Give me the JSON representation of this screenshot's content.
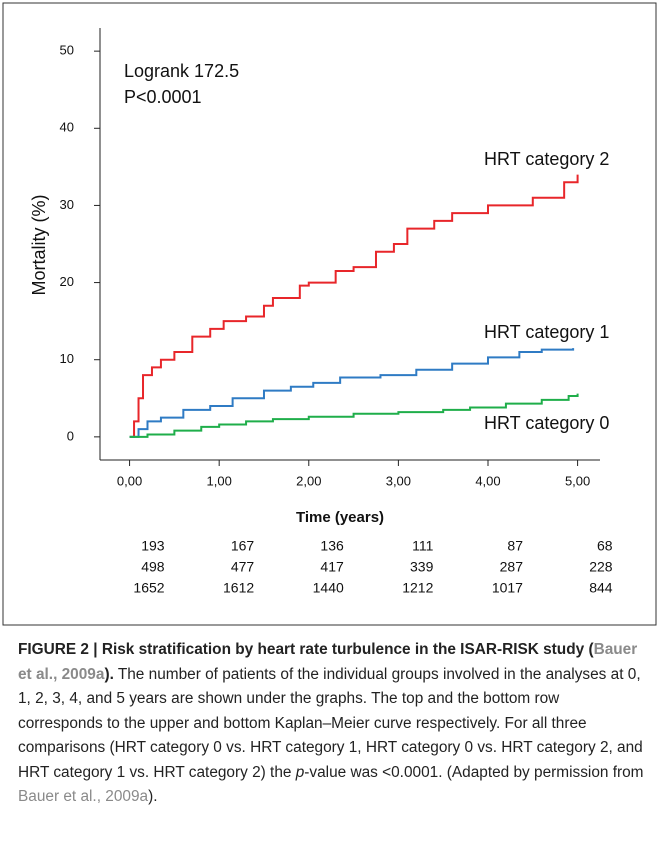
{
  "chart_data": {
    "type": "line",
    "step": true,
    "annotations": [
      "Logrank 172.5",
      "P<0.0001"
    ],
    "ylabel": "Mortality (%)",
    "xlabel": "Time (years)",
    "ylim": [
      -3,
      53
    ],
    "yticks": [
      0,
      10,
      20,
      30,
      40,
      50
    ],
    "xlim": [
      -0.33,
      5.25
    ],
    "xticks": [
      {
        "value": 0,
        "label": "0,00"
      },
      {
        "value": 1,
        "label": "1,00"
      },
      {
        "value": 2,
        "label": "2,00"
      },
      {
        "value": 3,
        "label": "3,00"
      },
      {
        "value": 4,
        "label": "4,00"
      },
      {
        "value": 5,
        "label": "5,00"
      }
    ],
    "series": [
      {
        "name": "HRT category 2",
        "color": "#e8262a",
        "x": [
          0,
          0.05,
          0.1,
          0.15,
          0.25,
          0.35,
          0.5,
          0.7,
          0.9,
          1.05,
          1.3,
          1.5,
          1.6,
          1.9,
          2.0,
          2.3,
          2.5,
          2.75,
          2.95,
          3.1,
          3.4,
          3.6,
          4.0,
          4.5,
          4.85,
          5.0
        ],
        "values": [
          0,
          2,
          5,
          8,
          9,
          10,
          11,
          13,
          14,
          15,
          15.6,
          17,
          18,
          19.6,
          20,
          21.5,
          22,
          24,
          25,
          27,
          28,
          29,
          30,
          31,
          33,
          34
        ]
      },
      {
        "name": "HRT category 1",
        "color": "#2f7bc4",
        "x": [
          0,
          0.1,
          0.2,
          0.35,
          0.6,
          0.9,
          1.15,
          1.5,
          1.8,
          2.05,
          2.35,
          2.8,
          3.2,
          3.6,
          4.0,
          4.35,
          4.6,
          4.95
        ],
        "values": [
          0,
          1,
          2,
          2.5,
          3.5,
          4,
          5,
          6,
          6.5,
          7,
          7.7,
          8,
          8.7,
          9.5,
          10.3,
          11,
          11.3,
          11.5
        ]
      },
      {
        "name": "HRT category 0",
        "color": "#1fae4a",
        "x": [
          0,
          0.2,
          0.5,
          0.8,
          1.0,
          1.3,
          1.6,
          2.0,
          2.5,
          3.0,
          3.5,
          3.8,
          4.2,
          4.6,
          4.9,
          5.0
        ],
        "values": [
          0,
          0.3,
          0.8,
          1.3,
          1.6,
          2,
          2.3,
          2.6,
          3,
          3.2,
          3.5,
          3.8,
          4.3,
          4.8,
          5.3,
          5.6
        ]
      }
    ],
    "risk_table": [
      [
        193,
        167,
        136,
        111,
        87,
        68
      ],
      [
        498,
        477,
        417,
        339,
        287,
        228
      ],
      [
        1652,
        1612,
        1440,
        1212,
        1017,
        844
      ]
    ]
  },
  "caption": {
    "title_start": "FIGURE 2 | Risk stratification by heart rate turbulence in the ISAR-RISK study (",
    "title_cite": "Bauer et al., 2009a",
    "title_end": ").",
    "body_1": " The number of patients of the individual groups involved in the analyses at 0, 1, 2, 3, 4, and 5 years are shown under the graphs. The top and the bottom row corresponds to the upper and bottom Kaplan–Meier curve respectively. For all three comparisons (HRT category 0 vs. HRT category 1, HRT category 0 vs. HRT category 2, and HRT category 1 vs. HRT category 2) the ",
    "body_p": "p",
    "body_2": "-value was <0.0001. (Adapted by permission from ",
    "body_cite": "Bauer et al., 2009a",
    "body_end": ")."
  }
}
